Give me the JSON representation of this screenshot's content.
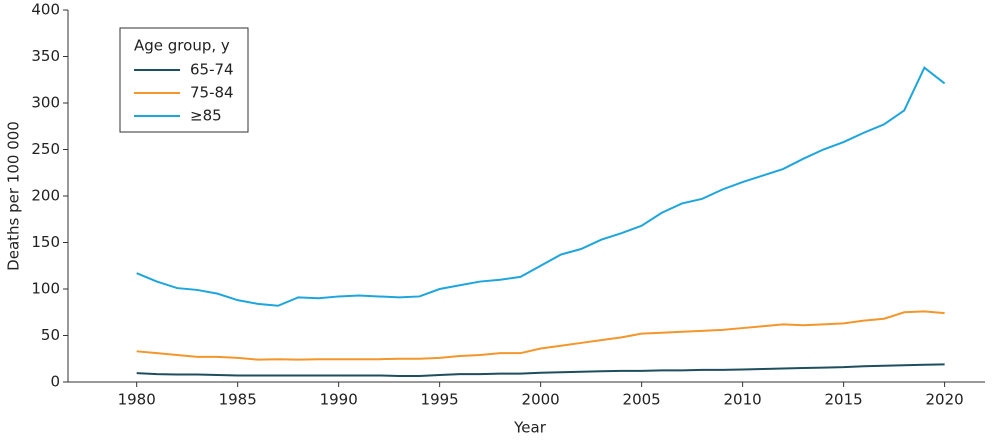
{
  "chart_data": {
    "type": "line",
    "x_label": "Year",
    "y_label": "Deaths per 100 000",
    "legend_title": "Age group, y",
    "legend": "upper left",
    "x": [
      1980,
      1981,
      1982,
      1983,
      1984,
      1985,
      1986,
      1987,
      1988,
      1989,
      1990,
      1991,
      1992,
      1993,
      1994,
      1995,
      1996,
      1997,
      1998,
      1999,
      2000,
      2001,
      2002,
      2003,
      2004,
      2005,
      2006,
      2007,
      2008,
      2009,
      2010,
      2011,
      2012,
      2013,
      2014,
      2015,
      2016,
      2017,
      2018,
      2019,
      2020
    ],
    "series": [
      {
        "name": "65-74",
        "color": "#1f4e5f",
        "values": [
          9.5,
          8.5,
          8,
          8,
          7.5,
          7,
          7,
          7,
          7,
          7,
          7,
          7,
          7,
          6.5,
          6.5,
          7.5,
          8.5,
          8.5,
          9,
          9,
          10,
          10.5,
          11,
          11.5,
          12,
          12,
          12.5,
          12.5,
          13,
          13,
          13.5,
          14,
          14.5,
          15,
          15.5,
          16,
          17,
          17.5,
          18,
          18.5,
          19
        ]
      },
      {
        "name": "75-84",
        "color": "#f3962b",
        "values": [
          33,
          31,
          29,
          27,
          27,
          26,
          24,
          24.5,
          24,
          24.5,
          24.5,
          24.5,
          24.5,
          25,
          25,
          26,
          28,
          29,
          31,
          31,
          36,
          39,
          42,
          45,
          48,
          52,
          53,
          54,
          55,
          56,
          58,
          60,
          62,
          61,
          62,
          63,
          66,
          68,
          75,
          76,
          74
        ]
      },
      {
        "name": "≥85",
        "color": "#1ea5dc",
        "values": [
          117,
          108,
          101,
          99,
          95,
          88,
          84,
          82,
          91,
          90,
          92,
          93,
          92,
          91,
          92,
          100,
          104,
          108,
          110,
          113,
          125,
          137,
          143,
          153,
          160,
          168,
          182,
          192,
          197,
          207,
          215,
          222,
          229,
          240,
          250,
          258,
          268,
          277,
          292,
          338,
          321
        ]
      }
    ],
    "xlim": [
      1976.6,
      2022
    ],
    "xticks": [
      1980,
      1985,
      1990,
      1995,
      2000,
      2005,
      2010,
      2015,
      2020
    ],
    "ylim": [
      0,
      400
    ],
    "yticks": [
      0,
      50,
      100,
      150,
      200,
      250,
      300,
      350,
      400
    ]
  }
}
